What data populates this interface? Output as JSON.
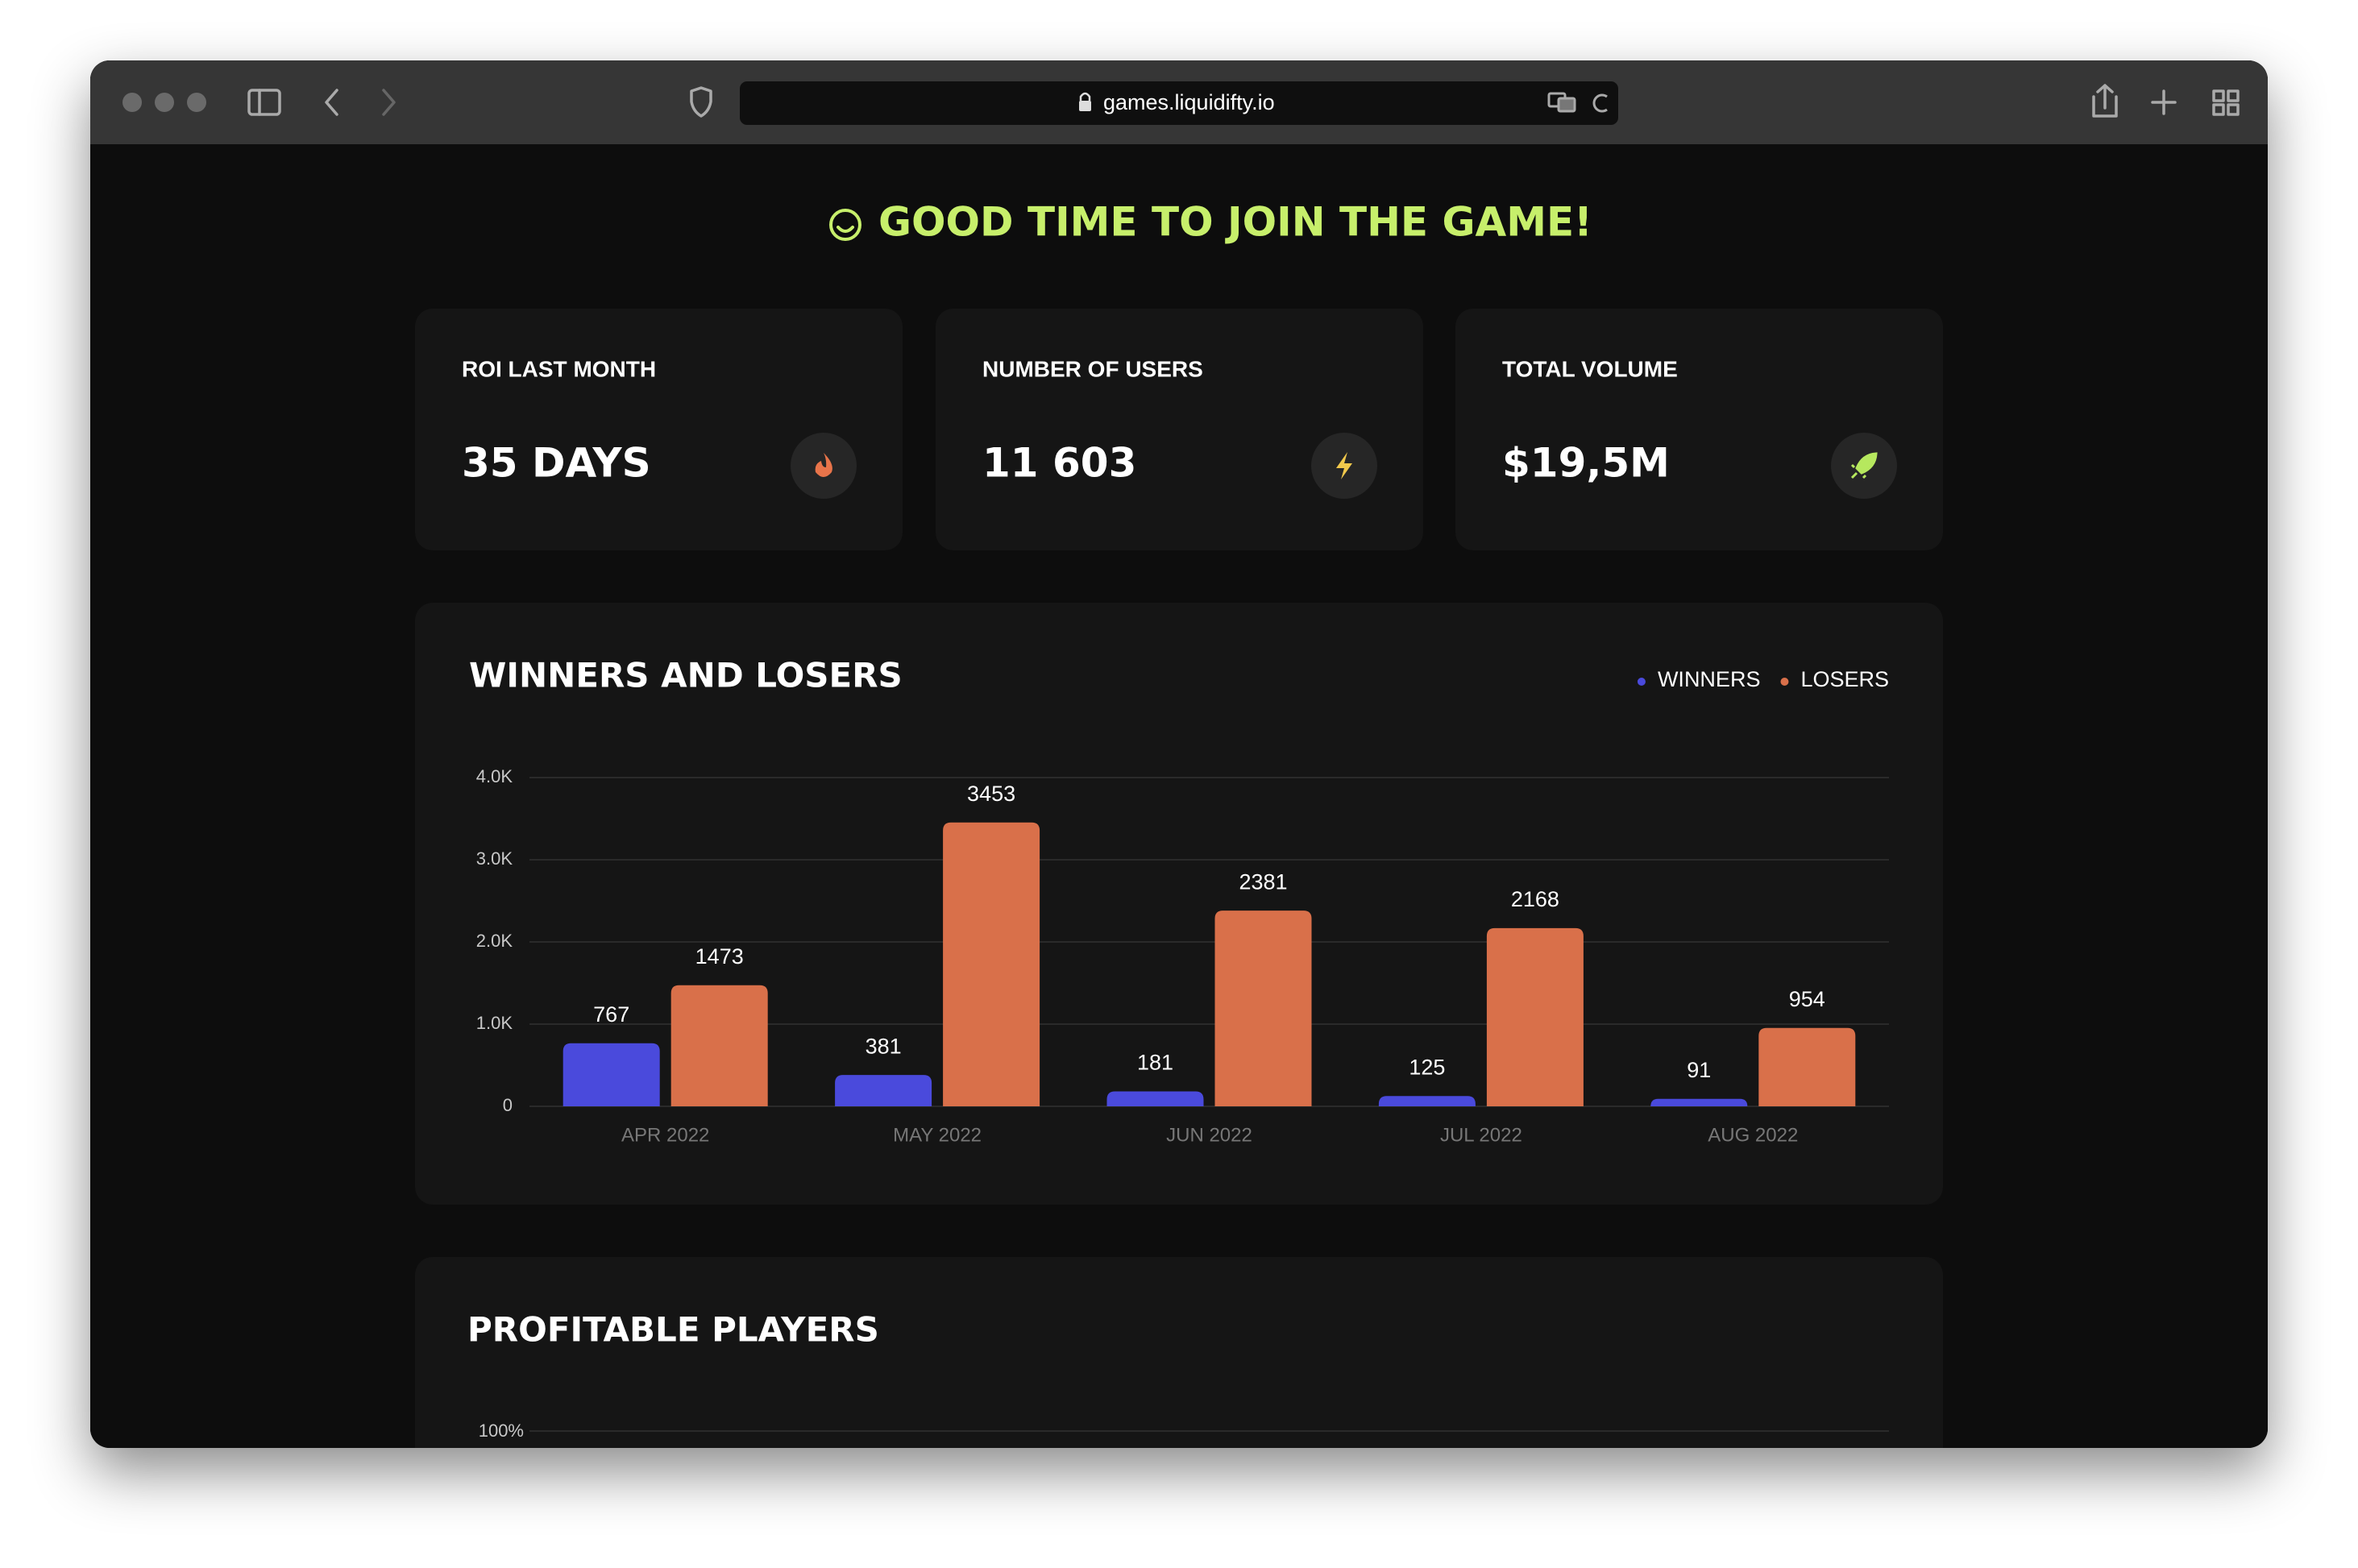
{
  "browser": {
    "url": "games.liquidifty.io"
  },
  "headline": "GOOD TIME TO JOIN THE GAME!",
  "cards": [
    {
      "label": "ROI LAST MONTH",
      "value": "35 DAYS"
    },
    {
      "label": "NUMBER OF USERS",
      "value": "11 603"
    },
    {
      "label": "TOTAL VOLUME",
      "value": "$19,5M"
    }
  ],
  "chart_data": {
    "type": "bar",
    "title": "WINNERS AND LOSERS",
    "categories": [
      "APR 2022",
      "MAY 2022",
      "JUN 2022",
      "JUL 2022",
      "AUG 2022"
    ],
    "series": [
      {
        "name": "WINNERS",
        "color": "#4a4adc",
        "values": [
          767,
          381,
          181,
          125,
          91
        ]
      },
      {
        "name": "LOSERS",
        "color": "#d9704a",
        "values": [
          1473,
          3453,
          2381,
          2168,
          954
        ]
      }
    ],
    "ylim": [
      0,
      4000
    ],
    "yticks": [
      0,
      {
        "value": 1000,
        "label": "1.0K"
      },
      {
        "value": 2000,
        "label": "2.0K"
      },
      {
        "value": 3000,
        "label": "3.0K"
      },
      {
        "value": 4000,
        "label": "4.0K"
      }
    ],
    "grid": true,
    "legend": "top-right"
  },
  "profitable_players": {
    "title": "PROFITABLE PLAYERS",
    "yticks": [
      {
        "value": 100,
        "label": "100%"
      }
    ]
  }
}
